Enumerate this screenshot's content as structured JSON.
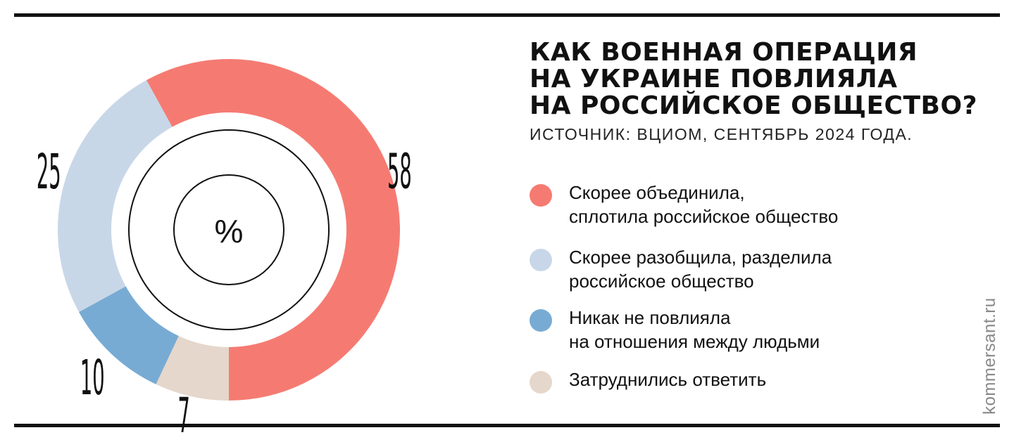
{
  "chart_data": {
    "type": "pie",
    "title_lines": [
      "КАК ВОЕННАЯ ОПЕРАЦИЯ",
      "НА УКРАИНЕ ПОВЛИЯЛА",
      "НА РОССИЙСКОЕ ОБЩЕСТВО?"
    ],
    "subtitle": "ИСТОЧНИК: ВЦИОМ, СЕНТЯБРЬ 2024 ГОДА.",
    "center_label": "%",
    "unit": "%",
    "legend_position": "right",
    "slices": [
      {
        "label_lines": [
          "Скорее объединила,",
          "сплотила российское общество"
        ],
        "value": 58,
        "value_label": "58",
        "color": "#f57b72"
      },
      {
        "label_lines": [
          "Скорее разобщила, разделила",
          "российское общество"
        ],
        "value": 25,
        "value_label": "25",
        "color": "#c8d7e8"
      },
      {
        "label_lines": [
          "Никак не повлияла",
          "на отношения между людьми"
        ],
        "value": 10,
        "value_label": "10",
        "color": "#78abd3"
      },
      {
        "label_lines": [
          "Затруднились ответить"
        ],
        "value": 7,
        "value_label": "7",
        "color": "#e5d7cb"
      }
    ]
  },
  "watermark": "kommersant.ru"
}
